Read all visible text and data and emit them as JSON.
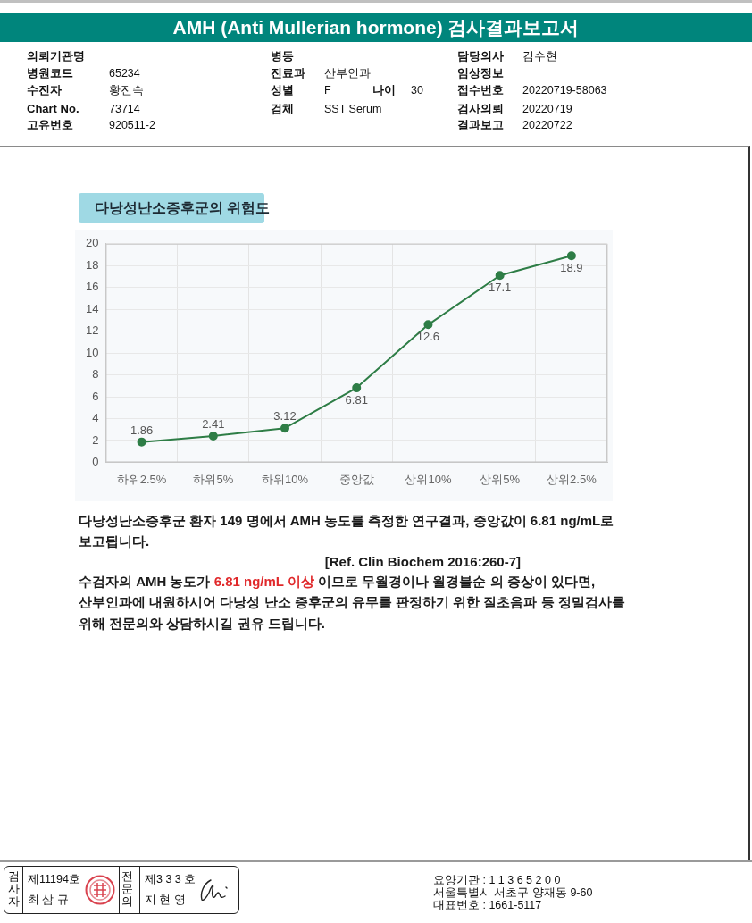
{
  "chart_data": {
    "type": "line",
    "title": "다낭성난소증후군의 위험도",
    "categories": [
      "하위2.5%",
      "하위5%",
      "하위10%",
      "중앙값",
      "상위10%",
      "상위5%",
      "상위2.5%"
    ],
    "values": [
      1.86,
      2.41,
      3.12,
      6.81,
      12.6,
      17.1,
      18.9
    ],
    "color": "#2e7d46",
    "ylim": [
      0,
      20
    ],
    "yticks": [
      0,
      2,
      4,
      6,
      8,
      10,
      12,
      14,
      16,
      18,
      20
    ],
    "grid": true,
    "marker": "circle",
    "line_style": "solid",
    "data_labels": true,
    "annotations": [
      "AMH (Anti Mullerian hormone) 검사결과보고서",
      "의뢰기관명",
      "병원코드",
      "65234",
      "수진자",
      "황진숙",
      "Chart No.",
      "73714",
      "고유번호",
      "920511-2",
      "병동",
      "진료과",
      "산부인과",
      "성별",
      "F",
      "나이",
      "30",
      "검체",
      "SST Serum",
      "담당의사",
      "김수현",
      "임상정보",
      "접수번호",
      "20220719-58063",
      "검사의뢰",
      "20220719",
      "결과보고",
      "20220722",
      "다낭성난소증후군 환자 149 명에서 AMH 농도를 측정한 연구결과, 중앙값이 6.81 ng/mL로",
      "보고됩니다.",
      "[Ref. Clin Biochem 2016:260-7]",
      "수검자의 AMH 농도가",
      "6.81 ng/mL 이상",
      "이므로 무월경이나 월경불순 의 증상이 있다면,",
      "산부인과에 내원하시어 다낭성 난소 증후군의 유무를 판정하기 위한 질초음파 등 정밀검사를",
      "위해 전문의와 상담하시길 권유 드립니다.",
      "검사자",
      "제11194호",
      "최 삼 규",
      "전문의",
      "제3 3 3 호",
      "지 현 영",
      "요양기관 : 1 1 3 6 5 2 0 0",
      "서울특별시 서초구 양재동 9-60",
      "대표번호 : 1661-5117"
    ]
  }
}
